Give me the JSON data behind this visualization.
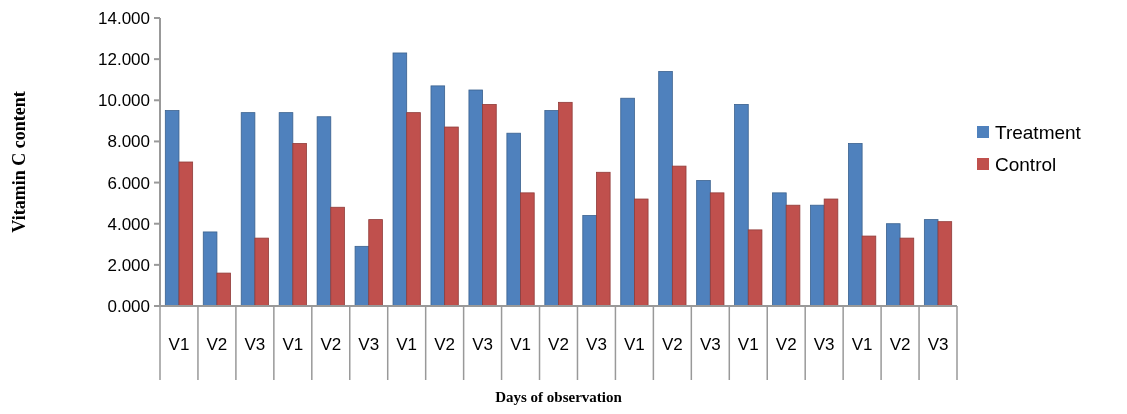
{
  "chart_data": {
    "type": "bar",
    "xlabel": "Days of observation",
    "ylabel": "Vitamin C content",
    "categories": [
      "V1",
      "V2",
      "V3",
      "V1",
      "V2",
      "V3",
      "V1",
      "V2",
      "V3",
      "V1",
      "V2",
      "V3",
      "V1",
      "V2",
      "V3",
      "V1",
      "V2",
      "V3",
      "V1",
      "V2",
      "V3"
    ],
    "series": [
      {
        "name": "Treatment",
        "color": "#4f81bd",
        "values": [
          9.5,
          3.6,
          9.4,
          9.4,
          9.2,
          2.9,
          12.3,
          10.7,
          10.5,
          8.4,
          9.5,
          4.4,
          10.1,
          11.4,
          6.1,
          9.8,
          5.5,
          4.9,
          7.9,
          4.0,
          4.2
        ]
      },
      {
        "name": "Control",
        "color": "#c0504d",
        "values": [
          7.0,
          1.6,
          3.3,
          7.9,
          4.8,
          4.2,
          9.4,
          8.7,
          9.8,
          5.5,
          9.9,
          6.5,
          5.2,
          6.8,
          5.5,
          3.7,
          4.9,
          5.2,
          3.4,
          3.3,
          4.1
        ]
      }
    ],
    "ylim": [
      0,
      14
    ],
    "yticks": [
      {
        "value": 0,
        "label": "0.000"
      },
      {
        "value": 2,
        "label": "2.000"
      },
      {
        "value": 4,
        "label": "4.000"
      },
      {
        "value": 6,
        "label": "6.000"
      },
      {
        "value": 8,
        "label": "8.000"
      },
      {
        "value": 10,
        "label": "10.000"
      },
      {
        "value": 12,
        "label": "12.000"
      },
      {
        "value": 14,
        "label": "14.000"
      }
    ],
    "legend": "right"
  }
}
